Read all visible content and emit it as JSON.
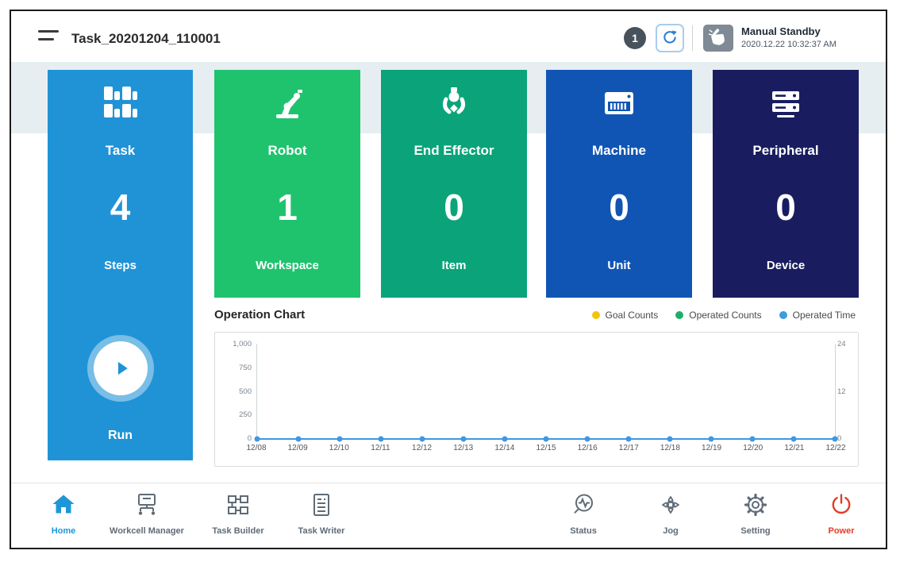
{
  "header": {
    "title": "Task_20201204_110001",
    "notification_count": "1",
    "mode_label": "Manual Standby",
    "timestamp": "2020.12.22 10:32:37 AM"
  },
  "cards": {
    "task": {
      "label": "Task",
      "value": "4",
      "sublabel": "Steps",
      "run_label": "Run",
      "color": "#2093d6"
    },
    "items": [
      {
        "label": "Robot",
        "value": "1",
        "sublabel": "Workspace",
        "color": "#1fc36e"
      },
      {
        "label": "End Effector",
        "value": "0",
        "sublabel": "Item",
        "color": "#0ba47a"
      },
      {
        "label": "Machine",
        "value": "0",
        "sublabel": "Unit",
        "color": "#1155b4"
      },
      {
        "label": "Peripheral",
        "value": "0",
        "sublabel": "Device",
        "color": "#191d5f"
      }
    ]
  },
  "chart": {
    "title": "Operation Chart",
    "legend": [
      {
        "label": "Goal Counts",
        "color": "#f1c40f"
      },
      {
        "label": "Operated Counts",
        "color": "#1fae6a"
      },
      {
        "label": "Operated Time",
        "color": "#3b9ddd"
      }
    ]
  },
  "chart_data": {
    "type": "line",
    "x": [
      "12/08",
      "12/09",
      "12/10",
      "12/11",
      "12/12",
      "12/13",
      "12/14",
      "12/15",
      "12/16",
      "12/17",
      "12/18",
      "12/19",
      "12/20",
      "12/21",
      "12/22"
    ],
    "series": [
      {
        "name": "Goal Counts",
        "axis": "left",
        "values": [
          0,
          0,
          0,
          0,
          0,
          0,
          0,
          0,
          0,
          0,
          0,
          0,
          0,
          0,
          0
        ]
      },
      {
        "name": "Operated Counts",
        "axis": "left",
        "values": [
          0,
          0,
          0,
          0,
          0,
          0,
          0,
          0,
          0,
          0,
          0,
          0,
          0,
          0,
          0
        ]
      },
      {
        "name": "Operated Time",
        "axis": "right",
        "values": [
          0,
          0,
          0,
          0,
          0,
          0,
          0,
          0,
          0,
          0,
          0,
          0,
          0,
          0,
          0
        ]
      }
    ],
    "left_axis": {
      "ticks": [
        "1,000",
        "750",
        "500",
        "250",
        "0"
      ],
      "range": [
        0,
        1000
      ]
    },
    "right_axis": {
      "ticks": [
        "24",
        "12",
        "0"
      ],
      "range": [
        0,
        24
      ]
    },
    "line_color": "#3f98e0",
    "grid": false,
    "legend_position": "top-right"
  },
  "nav": {
    "items": [
      {
        "label": "Home",
        "active": true
      },
      {
        "label": "Workcell Manager"
      },
      {
        "label": "Task Builder"
      },
      {
        "label": "Task Writer"
      },
      {
        "label": "Status"
      },
      {
        "label": "Jog"
      },
      {
        "label": "Setting"
      },
      {
        "label": "Power"
      }
    ]
  },
  "icons": [
    "menu-icon",
    "refresh-icon",
    "manual-hand-icon",
    "task-grid-icon",
    "robot-arm-icon",
    "gripper-icon",
    "machine-icon",
    "server-icon",
    "play-icon",
    "home-icon",
    "workcell-manager-icon",
    "task-builder-icon",
    "task-writer-icon",
    "status-icon",
    "jog-icon",
    "setting-icon",
    "power-icon"
  ]
}
